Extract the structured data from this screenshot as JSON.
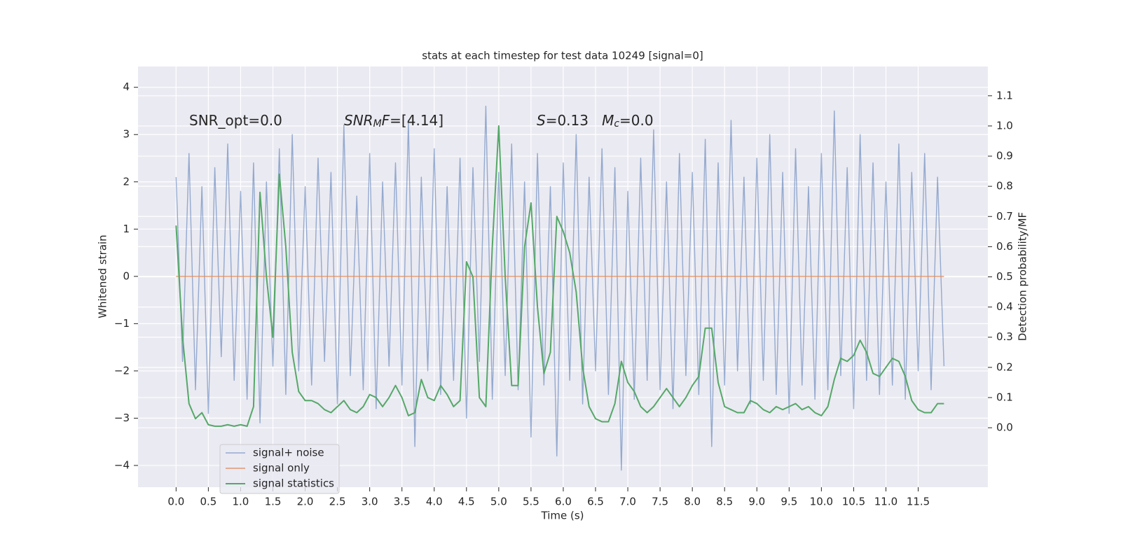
{
  "chart_data": {
    "type": "line",
    "title": "stats at each timestep for test data 10249 [signal=0]",
    "xlabel": "Time (s)",
    "ylabel": "Whitened strain",
    "y2label": "Detection probability/MF",
    "xlim": [
      -0.59,
      12.58
    ],
    "ylim": [
      -4.46,
      4.44
    ],
    "y2lim": [
      -0.197,
      1.197
    ],
    "xticks": [
      {
        "value": 0,
        "label": "0.0"
      },
      {
        "value": 0.5,
        "label": "0.5"
      },
      {
        "value": 1,
        "label": "1.0"
      },
      {
        "value": 1.5,
        "label": "1.5"
      },
      {
        "value": 2,
        "label": "2.0"
      },
      {
        "value": 2.5,
        "label": "2.5"
      },
      {
        "value": 3,
        "label": "3.0"
      },
      {
        "value": 3.5,
        "label": "3.5"
      },
      {
        "value": 4,
        "label": "4.0"
      },
      {
        "value": 4.5,
        "label": "4.5"
      },
      {
        "value": 5,
        "label": "5.0"
      },
      {
        "value": 5.5,
        "label": "5.5"
      },
      {
        "value": 6,
        "label": "6.0"
      },
      {
        "value": 6.5,
        "label": "6.5"
      },
      {
        "value": 7,
        "label": "7.0"
      },
      {
        "value": 7.5,
        "label": "7.5"
      },
      {
        "value": 8,
        "label": "8.0"
      },
      {
        "value": 8.5,
        "label": "8.5"
      },
      {
        "value": 9,
        "label": "9.0"
      },
      {
        "value": 9.5,
        "label": "9.5"
      },
      {
        "value": 10,
        "label": "10.0"
      },
      {
        "value": 10.5,
        "label": "10.5"
      },
      {
        "value": 11,
        "label": "11.0"
      },
      {
        "value": 11.5,
        "label": "11.5"
      }
    ],
    "yticks": [
      {
        "value": -4,
        "label": "−4"
      },
      {
        "value": -3,
        "label": "−3"
      },
      {
        "value": -2,
        "label": "−2"
      },
      {
        "value": -1,
        "label": "−1"
      },
      0,
      1,
      2,
      3,
      4
    ],
    "y2ticks": [
      {
        "value": 0,
        "label": "0.0"
      },
      {
        "value": 0.1,
        "label": "0.1"
      },
      {
        "value": 0.2,
        "label": "0.2"
      },
      {
        "value": 0.3,
        "label": "0.3"
      },
      {
        "value": 0.4,
        "label": "0.4"
      },
      {
        "value": 0.5,
        "label": "0.5"
      },
      {
        "value": 0.6,
        "label": "0.6"
      },
      {
        "value": 0.7,
        "label": "0.7"
      },
      {
        "value": 0.8,
        "label": "0.8"
      },
      {
        "value": 0.9,
        "label": "0.9"
      },
      {
        "value": 1,
        "label": "1.0"
      },
      {
        "value": 1.1,
        "label": "1.1"
      }
    ],
    "grid": true,
    "legend": "lower left",
    "x": [
      0,
      0.1,
      0.2,
      0.3,
      0.4,
      0.5,
      0.6,
      0.7,
      0.8,
      0.9,
      1,
      1.1,
      1.2,
      1.3,
      1.4,
      1.5,
      1.6,
      1.7,
      1.8,
      1.9,
      2,
      2.1,
      2.2,
      2.3,
      2.4,
      2.5,
      2.6,
      2.7,
      2.8,
      2.9,
      3,
      3.1,
      3.2,
      3.3,
      3.4,
      3.5,
      3.6,
      3.7,
      3.8,
      3.9,
      4,
      4.1,
      4.2,
      4.3,
      4.4,
      4.5,
      4.6,
      4.7,
      4.8,
      4.9,
      5,
      5.1,
      5.2,
      5.3,
      5.4,
      5.5,
      5.6,
      5.7,
      5.8,
      5.9,
      6,
      6.1,
      6.2,
      6.3,
      6.4,
      6.5,
      6.6,
      6.7,
      6.8,
      6.9,
      7,
      7.1,
      7.2,
      7.3,
      7.4,
      7.5,
      7.6,
      7.7,
      7.8,
      7.9,
      8,
      8.1,
      8.2,
      8.3,
      8.4,
      8.5,
      8.6,
      8.7,
      8.8,
      8.9,
      9,
      9.1,
      9.2,
      9.3,
      9.4,
      9.5,
      9.6,
      9.7,
      9.8,
      9.9,
      10,
      10.1,
      10.2,
      10.3,
      10.4,
      10.5,
      10.6,
      10.7,
      10.8,
      10.9,
      11,
      11.1,
      11.2,
      11.3,
      11.4,
      11.5,
      11.6,
      11.7,
      11.8,
      11.9
    ],
    "series": [
      {
        "name": "signal+ noise",
        "color": "#4c72b0",
        "values": [
          2.1,
          -1.8,
          2.6,
          -2.4,
          1.9,
          -2.9,
          2.3,
          -1.7,
          2.8,
          -2.2,
          1.8,
          -2.6,
          2.4,
          -3.1,
          2.0,
          -1.9,
          2.7,
          -2.5,
          3.0,
          -2.0,
          1.9,
          -2.3,
          2.5,
          -1.8,
          2.2,
          -2.7,
          3.2,
          -2.1,
          1.7,
          -2.4,
          2.6,
          -2.8,
          2.0,
          -1.9,
          2.4,
          -2.3,
          3.3,
          -3.6,
          2.1,
          -2.0,
          2.7,
          -2.5,
          1.9,
          -2.2,
          2.5,
          -3.0,
          2.3,
          -1.8,
          3.6,
          -2.6,
          2.2,
          -2.1,
          2.8,
          -2.4,
          2.0,
          -3.4,
          2.6,
          -2.3,
          1.9,
          -3.8,
          2.4,
          -2.2,
          3.0,
          -2.7,
          2.1,
          -2.0,
          2.7,
          -2.5,
          2.3,
          -4.1,
          1.8,
          -2.6,
          2.5,
          -2.2,
          3.1,
          -2.4,
          2.0,
          -2.8,
          2.6,
          -2.1,
          2.2,
          -2.5,
          2.9,
          -3.6,
          2.4,
          -2.3,
          3.3,
          -2.0,
          2.1,
          -2.7,
          2.5,
          -2.2,
          3.0,
          -2.5,
          2.2,
          -2.9,
          2.7,
          -2.3,
          1.9,
          -2.6,
          2.6,
          -2.4,
          3.5,
          -2.1,
          2.3,
          -2.8,
          3.0,
          -2.2,
          2.4,
          -2.5,
          2.0,
          -2.3,
          2.8,
          -2.6,
          2.2,
          -2.0,
          2.6,
          -2.4,
          2.1,
          -1.9
        ]
      },
      {
        "name": "signal only",
        "color": "#dd8452",
        "x": [
          0,
          11.9
        ],
        "values": [
          0,
          0
        ]
      },
      {
        "name": "signal statistics",
        "color": "#55a868",
        "axis": "y2",
        "values": [
          0.67,
          0.3,
          0.08,
          0.03,
          0.05,
          0.01,
          0.005,
          0.005,
          0.01,
          0.005,
          0.01,
          0.005,
          0.07,
          0.78,
          0.5,
          0.3,
          0.84,
          0.6,
          0.25,
          0.12,
          0.09,
          0.09,
          0.08,
          0.06,
          0.05,
          0.07,
          0.09,
          0.06,
          0.05,
          0.07,
          0.11,
          0.1,
          0.07,
          0.1,
          0.14,
          0.1,
          0.04,
          0.05,
          0.16,
          0.1,
          0.09,
          0.14,
          0.11,
          0.07,
          0.09,
          0.55,
          0.5,
          0.1,
          0.07,
          0.6,
          1.0,
          0.5,
          0.14,
          0.14,
          0.6,
          0.745,
          0.4,
          0.18,
          0.25,
          0.7,
          0.65,
          0.58,
          0.45,
          0.2,
          0.07,
          0.03,
          0.02,
          0.02,
          0.08,
          0.22,
          0.15,
          0.12,
          0.07,
          0.05,
          0.07,
          0.1,
          0.13,
          0.1,
          0.07,
          0.1,
          0.14,
          0.17,
          0.33,
          0.33,
          0.15,
          0.07,
          0.06,
          0.05,
          0.05,
          0.09,
          0.08,
          0.06,
          0.05,
          0.07,
          0.06,
          0.07,
          0.08,
          0.06,
          0.07,
          0.05,
          0.04,
          0.07,
          0.16,
          0.23,
          0.22,
          0.24,
          0.29,
          0.25,
          0.18,
          0.17,
          0.2,
          0.23,
          0.22,
          0.17,
          0.09,
          0.06,
          0.05,
          0.05,
          0.08,
          0.08
        ]
      }
    ],
    "annotations": [
      {
        "parts": [
          {
            "text": "SNR_opt=0.0"
          }
        ]
      },
      {
        "parts": [
          {
            "text": "SNR",
            "italic": true
          },
          {
            "text": "M",
            "italic": true,
            "sub": true
          },
          {
            "text": "F",
            "italic": true
          },
          {
            "text": "=[4.14]"
          }
        ]
      },
      {
        "parts": [
          {
            "text": "S",
            "italic": true
          },
          {
            "text": "=0.13   "
          },
          {
            "text": "M",
            "italic": true
          },
          {
            "text": "c",
            "italic": true,
            "sub": true
          },
          {
            "text": "=0.0"
          }
        ]
      }
    ]
  }
}
